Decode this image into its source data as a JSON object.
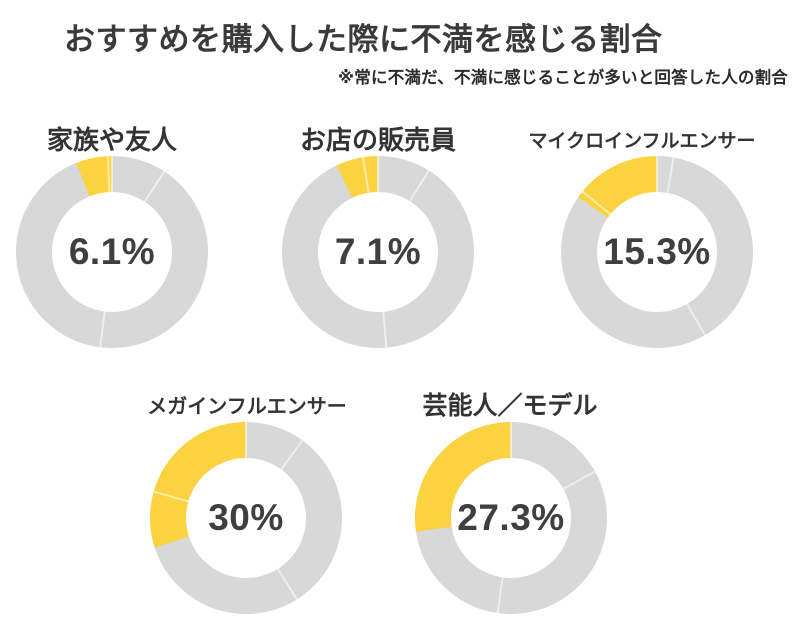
{
  "header": {
    "title": "おすすめを購入した際に不満を感じる割合",
    "note": "※常に不満だ、不満に感じることが多いと回答した人の割合"
  },
  "chart_data": {
    "type": "pie",
    "variant": "donut-small-multiples",
    "unit": "%",
    "title": "おすすめを購入した際に不満を感じる割合",
    "subtitle": "※常に不満だ、不満に感じることが多いと回答した人の割合",
    "highlight_color": "#FBD23F",
    "remainder_color": "#D8D8D8",
    "slice_direction": "counterclockwise-from-top",
    "legend": "none",
    "series": [
      {
        "category": "家族や友人",
        "value": 6.1,
        "label": "6.1%",
        "remainder": 93.9,
        "segment_divider_angles_deg": [
          0,
          33,
          187,
          357.5
        ]
      },
      {
        "category": "お店の販売員",
        "value": 7.1,
        "label": "7.1%",
        "remainder": 92.9,
        "segment_divider_angles_deg": [
          0,
          32,
          175,
          351
        ]
      },
      {
        "category": "マイクロインフルエンサー",
        "value": 15.3,
        "label": "15.3%",
        "remainder": 84.7,
        "segment_divider_angles_deg": [
          0,
          10,
          150,
          309
        ]
      },
      {
        "category": "メガインフルエンサー",
        "value": 30,
        "label": "30%",
        "remainder": 70,
        "segment_divider_angles_deg": [
          0,
          36,
          148,
          286
        ]
      },
      {
        "category": "芸能人／モデル",
        "value": 27.3,
        "label": "27.3%",
        "remainder": 72.7,
        "segment_divider_angles_deg": [
          0,
          61,
          188
        ]
      }
    ]
  }
}
